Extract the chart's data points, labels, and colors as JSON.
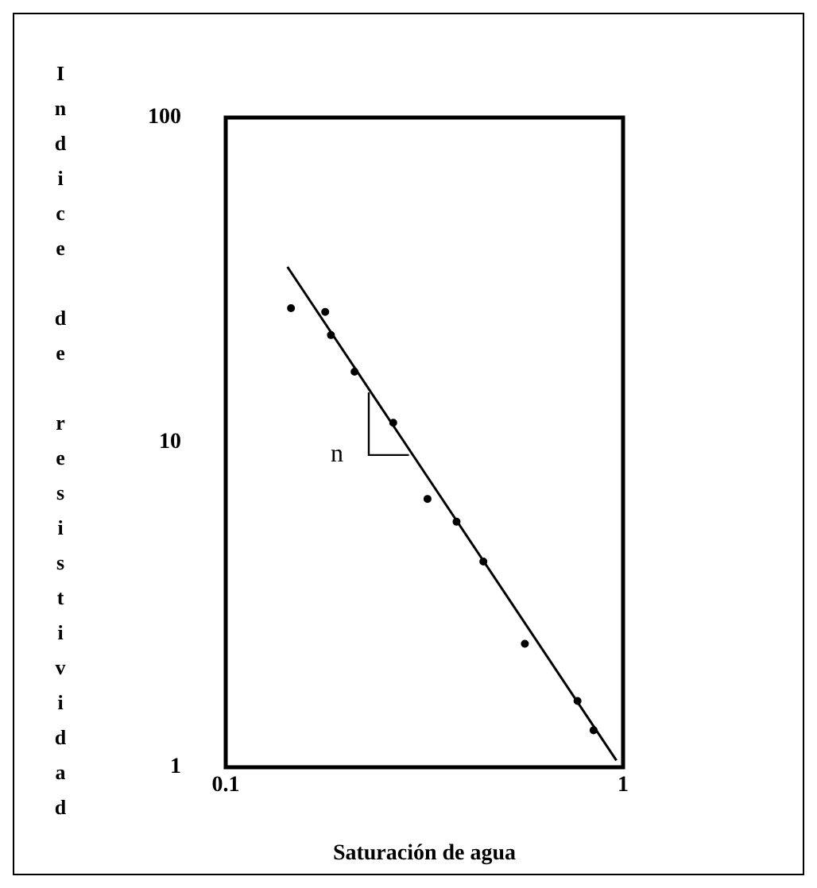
{
  "chart_data": {
    "type": "scatter",
    "xlabel": "Saturación de agua",
    "ylabel": "Indice de resistividad",
    "log": "xy",
    "xlim": [
      0.1,
      1
    ],
    "xticks": [
      0.1,
      1
    ],
    "ylim": [
      1,
      100
    ],
    "yticks": [
      1,
      10,
      100
    ],
    "grid": false,
    "legend": false,
    "marker": "circle",
    "series": [
      {
        "color": "#000000",
        "x": [
          0.146,
          0.178,
          0.184,
          0.211,
          0.264,
          0.322,
          0.381,
          0.445,
          0.566,
          0.768,
          0.843
        ],
        "values": [
          25.9,
          25.2,
          21.4,
          16.5,
          11.5,
          6.7,
          5.7,
          4.3,
          2.4,
          1.6,
          1.3
        ]
      },
      {
        "type": "line",
        "color": "#000000",
        "line_style": "solid",
        "marker": "none",
        "x": [
          0.143,
          0.962
        ],
        "values": [
          34.7,
          1.05
        ]
      }
    ],
    "annotations": [
      "n"
    ]
  }
}
